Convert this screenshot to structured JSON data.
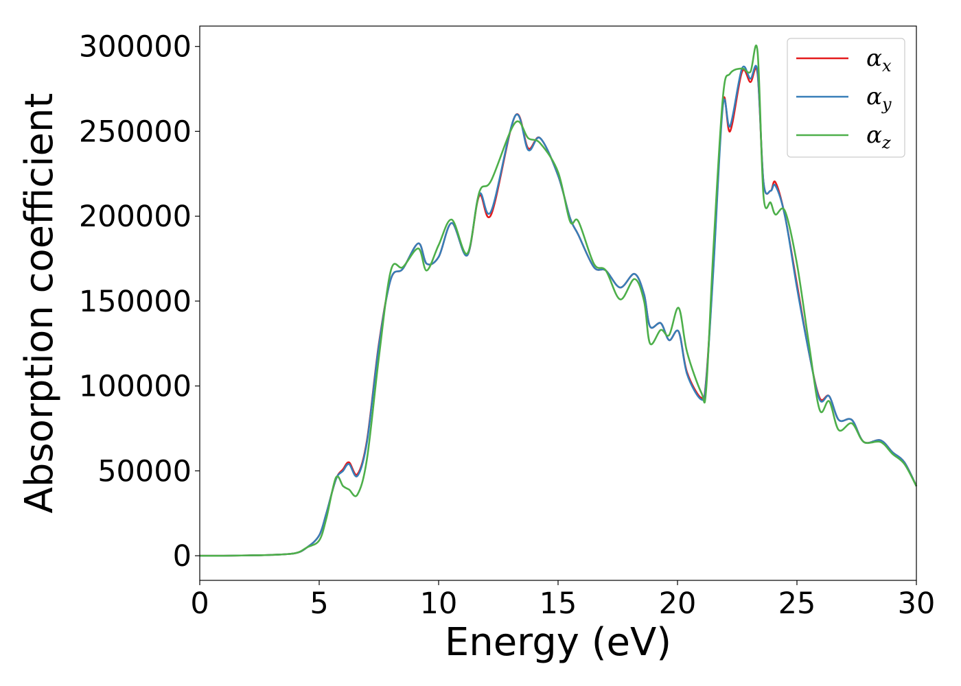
{
  "chart_data": {
    "type": "line",
    "xlabel": "Energy (eV)",
    "ylabel": "Absorption coefficient",
    "xlim": [
      0,
      30
    ],
    "ylim": [
      -14500,
      312000
    ],
    "x_ticks": [
      0,
      5,
      10,
      15,
      20,
      25,
      30
    ],
    "x_tick_labels": [
      "0",
      "5",
      "10",
      "15",
      "20",
      "25",
      "30"
    ],
    "y_ticks": [
      0,
      50000,
      100000,
      150000,
      200000,
      250000,
      300000
    ],
    "y_tick_labels": [
      "0",
      "50000",
      "100000",
      "150000",
      "200000",
      "250000",
      "300000"
    ],
    "grid": false,
    "legend_position": "top-right",
    "x": [
      0,
      1,
      2,
      3,
      4,
      4.5,
      5,
      5.3,
      5.7,
      6.0,
      6.25,
      6.6,
      7.0,
      7.5,
      8.0,
      8.5,
      9.15,
      9.5,
      10.0,
      10.55,
      11.2,
      11.7,
      12.2,
      13.2,
      13.75,
      14.25,
      15.0,
      15.5,
      15.85,
      16.5,
      17.0,
      17.6,
      18.2,
      18.6,
      18.85,
      19.3,
      19.65,
      20.05,
      20.4,
      21.0,
      21.2,
      21.5,
      21.9,
      22.2,
      22.7,
      23.05,
      23.35,
      23.6,
      23.9,
      24.1,
      24.5,
      25.0,
      25.5,
      25.95,
      26.35,
      26.75,
      27.3,
      27.8,
      28.5,
      29.0,
      29.5,
      30.0
    ],
    "series": [
      {
        "name": "α_x",
        "label_symbol": "α",
        "label_sub": "x",
        "color": "#e41a1c",
        "values": [
          0,
          0,
          200,
          500,
          1500,
          5000,
          12000,
          25000,
          45000,
          51000,
          55000,
          48000,
          68000,
          125000,
          163000,
          169000,
          184000,
          172000,
          176000,
          196000,
          177000,
          212000,
          201000,
          259000,
          240000,
          246000,
          224000,
          199000,
          189000,
          170000,
          168000,
          158000,
          166000,
          154000,
          135000,
          137000,
          127000,
          132000,
          108000,
          93000,
          104000,
          170000,
          267000,
          250000,
          285000,
          279000,
          284000,
          220000,
          215000,
          220000,
          200000,
          160000,
          120000,
          93000,
          94000,
          80000,
          80000,
          67000,
          68000,
          61000,
          55000,
          41000
        ]
      },
      {
        "name": "α_y",
        "label_symbol": "α",
        "label_sub": "y",
        "color": "#377eb8",
        "values": [
          0,
          0,
          200,
          500,
          1500,
          5000,
          12000,
          25000,
          45000,
          50000,
          54000,
          47000,
          67000,
          124000,
          163000,
          169000,
          184000,
          172000,
          176000,
          196000,
          177000,
          213000,
          203000,
          259000,
          239000,
          246000,
          224000,
          199000,
          189000,
          170000,
          168000,
          158000,
          166000,
          154000,
          135000,
          137000,
          127000,
          132000,
          107000,
          92000,
          103000,
          168000,
          265000,
          253000,
          287000,
          281000,
          285000,
          220000,
          215000,
          218000,
          200000,
          158000,
          120000,
          92000,
          94000,
          80000,
          80000,
          67000,
          68000,
          61000,
          55000,
          41000
        ]
      },
      {
        "name": "α_z",
        "label_symbol": "α",
        "label_sub": "z",
        "color": "#4daf4a",
        "values": [
          0,
          0,
          200,
          500,
          1500,
          5000,
          9000,
          22000,
          46000,
          41000,
          39000,
          36000,
          57000,
          117000,
          168000,
          170000,
          181000,
          168000,
          183000,
          198000,
          178000,
          214000,
          221000,
          255000,
          246000,
          243000,
          226000,
          197000,
          197000,
          172000,
          168000,
          151000,
          163000,
          150000,
          125000,
          133000,
          130000,
          146000,
          120000,
          96000,
          98000,
          180000,
          270000,
          284000,
          287000,
          285000,
          297000,
          212000,
          208000,
          201000,
          203000,
          172000,
          125000,
          86000,
          91000,
          74000,
          78000,
          67000,
          67000,
          60000,
          54000,
          41000
        ]
      }
    ]
  }
}
